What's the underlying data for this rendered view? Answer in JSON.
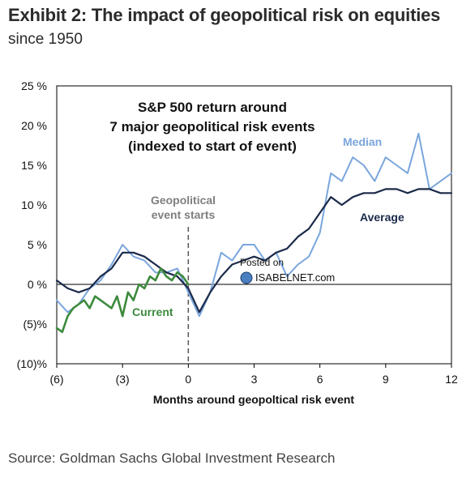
{
  "header": {
    "title": "Exhibit 2: The impact of geopolitical risk on equities",
    "subtitle": "since 1950"
  },
  "footer": {
    "source": "Source: Goldman Sachs Global Investment Research"
  },
  "chart_data": {
    "type": "line",
    "box_title": [
      "S&P 500 return around",
      "7 major geopolitical risk events",
      "(indexed to start of event)"
    ],
    "xlabel": "Months around geopoltical risk event",
    "ylabel": "",
    "xlim": [
      -6,
      12
    ],
    "ylim": [
      -10,
      25
    ],
    "x_ticks": [
      -6,
      -3,
      0,
      3,
      6,
      9,
      12
    ],
    "x_tick_labels": [
      "(6)",
      "(3)",
      "0",
      "3",
      "6",
      "9",
      "12"
    ],
    "y_ticks": [
      25,
      20,
      15,
      10,
      5,
      0,
      -5,
      -10
    ],
    "y_tick_labels": [
      "25 %",
      "20 %",
      "15 %",
      "10 %",
      "5 %",
      "0 %",
      "(5)%",
      "(10)%"
    ],
    "event_line": {
      "x": 0,
      "label": [
        "Geopolitical",
        "event starts"
      ]
    },
    "watermark": {
      "line1": "Posted on",
      "line2": "ISABELNET.com"
    },
    "series": [
      {
        "name": "Median",
        "color": "#7aa6dd",
        "x": [
          -6,
          -5.5,
          -5,
          -4.5,
          -4,
          -3.5,
          -3,
          -2.5,
          -2,
          -1.5,
          -1,
          -0.5,
          0,
          0.5,
          1,
          1.5,
          2,
          2.5,
          3,
          3.5,
          4,
          4.5,
          5,
          5.5,
          6,
          6.5,
          7,
          7.5,
          8,
          8.5,
          9,
          9.5,
          10,
          10.5,
          11,
          11.5,
          12
        ],
        "values": [
          -2,
          -3.5,
          -2.5,
          -0.5,
          0.5,
          2.5,
          5,
          3.5,
          3,
          1.5,
          1.5,
          2,
          -1,
          -4,
          -1,
          4,
          3,
          5,
          5,
          3,
          4,
          1,
          2.5,
          3.5,
          6.5,
          14,
          13,
          16,
          15,
          13,
          16,
          15,
          14,
          19,
          12,
          13,
          14
        ]
      },
      {
        "name": "Average",
        "color": "#1b2a4a",
        "x": [
          -6,
          -5.5,
          -5,
          -4.5,
          -4,
          -3.5,
          -3,
          -2.5,
          -2,
          -1.5,
          -1,
          -0.5,
          0,
          0.5,
          1,
          1.5,
          2,
          2.5,
          3,
          3.5,
          4,
          4.5,
          5,
          5.5,
          6,
          6.5,
          7,
          7.5,
          8,
          8.5,
          9,
          9.5,
          10,
          10.5,
          11,
          11.5,
          12
        ],
        "values": [
          0.5,
          -0.5,
          -1,
          -0.5,
          1,
          2,
          4,
          4,
          3.5,
          2.5,
          1.5,
          1,
          -0.5,
          -3.5,
          -1,
          1,
          2.5,
          3,
          3.5,
          3,
          4,
          4.5,
          6,
          7,
          9,
          11,
          10,
          11,
          11.5,
          11.5,
          12,
          12,
          11.5,
          12,
          12,
          11.5,
          11.5
        ]
      },
      {
        "name": "Current",
        "color": "#3d8a3d",
        "x": [
          -6,
          -5.75,
          -5.5,
          -5.25,
          -5,
          -4.75,
          -4.5,
          -4.25,
          -4,
          -3.75,
          -3.5,
          -3.25,
          -3,
          -2.75,
          -2.5,
          -2.25,
          -2,
          -1.75,
          -1.5,
          -1.25,
          -1,
          -0.75,
          -0.5,
          -0.25,
          0
        ],
        "values": [
          -5.5,
          -6,
          -4,
          -3,
          -2.5,
          -2,
          -3,
          -1.5,
          -2,
          -2.5,
          -3,
          -1.5,
          -4,
          -1,
          -2,
          0,
          -0.5,
          1,
          0.5,
          2,
          1,
          0.5,
          1.5,
          1,
          0
        ]
      }
    ]
  }
}
